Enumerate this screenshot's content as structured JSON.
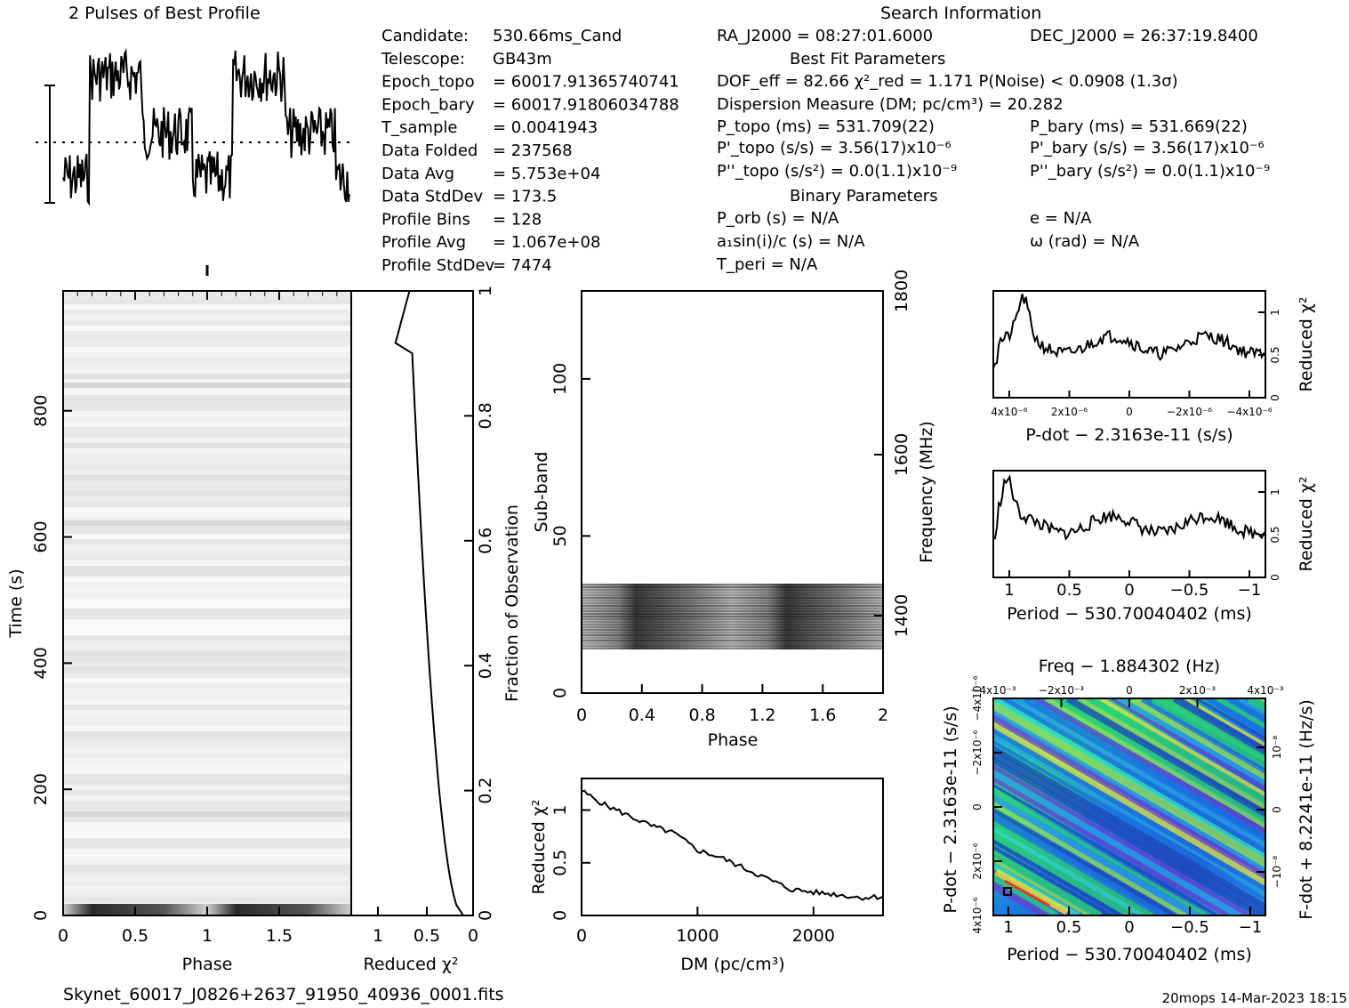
{
  "header": {
    "profile_title": "2 Pulses of Best Profile",
    "search_title": "Search Information",
    "best_fit_title": "Best Fit Parameters",
    "binary_title": "Binary Parameters",
    "filename": "Skynet_60017_J0826+2637_91950_40936_0001.fits",
    "footer_stamp": "20mops 14-Mar-2023 18:15"
  },
  "info_left": [
    {
      "label": "Candidate:",
      "value": "530.66ms_Cand"
    },
    {
      "label": "Telescope:",
      "value": "GB43m"
    },
    {
      "label": "Epoch_topo",
      "value": "= 60017.91365740741"
    },
    {
      "label": "Epoch_bary",
      "value": "= 60017.91806034788"
    },
    {
      "label": "T_sample",
      "value": "=   0.0041943"
    },
    {
      "label": "Data Folded",
      "value": "=   237568"
    },
    {
      "label": "Data Avg",
      "value": "=   5.753e+04"
    },
    {
      "label": "Data StdDev",
      "value": "=   173.5"
    },
    {
      "label": "Profile Bins",
      "value": "=   128"
    },
    {
      "label": "Profile Avg",
      "value": "=   1.067e+08"
    },
    {
      "label": "Profile StdDev",
      "value": "=   7474"
    }
  ],
  "info_mid": {
    "ra": "RA_J2000 = 08:27:01.6000",
    "dec": "DEC_J2000 = 26:37:19.8400",
    "dof": "DOF_eff = 82.66  χ²_red = 1.171  P(Noise) < 0.0908  (1.3σ)",
    "dm": "Dispersion Measure (DM; pc/cm³) = 20.282",
    "ptopo": "P_topo (ms) =  531.709(22)",
    "pbary": "P_bary (ms) =  531.669(22)",
    "pdtopo": "P'_topo (s/s) =  3.56(17)x10⁻⁶",
    "pdbary": "P'_bary (s/s) =  3.56(17)x10⁻⁶",
    "pddtopo": "P''_topo (s/s²) = 0.0(1.1)x10⁻⁹",
    "pddbary": "P''_bary (s/s²) = 0.0(1.1)x10⁻⁹",
    "porb": "P_orb (s) = N/A",
    "e": "e = N/A",
    "a1": "a₁sin(i)/c (s) = N/A",
    "omega": "ω (rad) = N/A",
    "tperi": "T_peri = N/A"
  },
  "axes": {
    "time_label": "Time (s)",
    "phase_label": "Phase",
    "redchi_label": "Reduced χ²",
    "fraction_label": "Fraction of Observation",
    "subband_label": "Sub-band",
    "frequency_label": "Frequency (MHz)",
    "dm_label": "DM (pc/cm³)",
    "pdot_label": "P-dot − 2.3163e-11 (s/s)",
    "period_label": "Period − 530.70040402 (ms)",
    "freq_label": "Freq − 1.884302 (Hz)",
    "pdot2_label": "P-dot − 2.3163e-11 (s/s)",
    "fdot_label": "F-dot + 8.2241e-11 (Hz/s)"
  },
  "chart_data": [
    {
      "type": "line",
      "name_hint": "profile",
      "x_range": [
        0,
        2
      ],
      "ybar": "error bar shown at left"
    },
    {
      "type": "heatmap",
      "name_hint": "time-phase",
      "xlabel": "Phase",
      "ylabel": "Time (s)",
      "xlim": [
        0,
        2
      ],
      "ylim": [
        0,
        990
      ],
      "x_ticks": [
        "0",
        "0.5",
        "1",
        "1.5"
      ],
      "y_ticks": [
        "0",
        "200",
        "400",
        "600",
        "800"
      ]
    },
    {
      "type": "line",
      "name_hint": "time-redchi",
      "xlabel": "Reduced χ²",
      "x_ticks": [
        "1",
        "0.5",
        "0"
      ],
      "y2_ticks": [
        "0",
        "0.2",
        "0.4",
        "0.6",
        "0.8",
        "1"
      ],
      "ylabel2": "Fraction of Observation"
    },
    {
      "type": "heatmap",
      "name_hint": "subband-phase",
      "xlabel": "Phase",
      "ylabel": "Sub-band",
      "xlim": [
        0,
        2
      ],
      "ylim": [
        0,
        128
      ],
      "x_ticks": [
        "0",
        "0.4",
        "0.8",
        "1.2",
        "1.6",
        "2"
      ],
      "y_ticks": [
        "0",
        "50",
        "100"
      ],
      "y2_ticks": [
        "1400",
        "1600",
        "1800"
      ],
      "ylabel2": "Frequency (MHz)"
    },
    {
      "type": "line",
      "name_hint": "dm-redchi",
      "xlabel": "DM (pc/cm³)",
      "ylabel": "Reduced χ²",
      "xlim": [
        0,
        2600
      ],
      "x_ticks": [
        "0",
        "1000",
        "2000"
      ],
      "y_ticks": [
        "0",
        "0.5",
        "1"
      ],
      "points": [
        [
          0,
          1.18
        ],
        [
          200,
          1.05
        ],
        [
          400,
          0.95
        ],
        [
          600,
          0.85
        ],
        [
          800,
          0.78
        ],
        [
          1000,
          0.62
        ],
        [
          1200,
          0.55
        ],
        [
          1400,
          0.45
        ],
        [
          1600,
          0.35
        ],
        [
          1800,
          0.25
        ],
        [
          2000,
          0.22
        ],
        [
          2200,
          0.2
        ],
        [
          2400,
          0.17
        ],
        [
          2600,
          0.18
        ]
      ]
    },
    {
      "type": "line",
      "name_hint": "pdot-redchi",
      "xlabel": "P-dot − 2.3163e-11 (s/s)",
      "ylabel": "Reduced χ²",
      "x_ticks": [
        "4x10⁻⁶",
        "2x10⁻⁶",
        "0",
        "−2x10⁻⁶",
        "−4x10⁻⁶"
      ],
      "y_ticks": [
        "0",
        "0.5",
        "1"
      ]
    },
    {
      "type": "line",
      "name_hint": "period-redchi",
      "xlabel": "Period − 530.70040402 (ms)",
      "ylabel": "Reduced χ²",
      "x_ticks": [
        "1",
        "0.5",
        "0",
        "−0.5",
        "−1"
      ],
      "y_ticks": [
        "0",
        "0.5",
        "1"
      ]
    },
    {
      "type": "heatmap",
      "name_hint": "period-pdot",
      "xlabel": "Period − 530.70040402 (ms)",
      "x_ticks": [
        "1",
        "0.5",
        "0",
        "−0.5",
        "−1"
      ],
      "top_ticks": [
        "−4x10⁻³",
        "−2x10⁻³",
        "0",
        "2x10⁻³",
        "4x10⁻³"
      ],
      "left_ticks": [
        "4x10⁻⁶",
        "2x10⁻⁶",
        "0",
        "−2x10⁻⁶",
        "−4x10⁻⁶"
      ],
      "right_ticks": [
        "10⁻⁸",
        "0",
        "−10⁻⁸"
      ]
    }
  ]
}
